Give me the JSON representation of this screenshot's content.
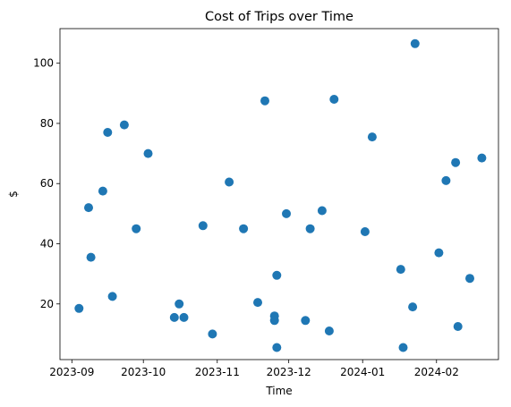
{
  "chart_data": {
    "type": "scatter",
    "title": "Cost of Trips over Time",
    "xlabel": "Time",
    "ylabel": "$",
    "xlim": [
      "2023-08-27",
      "2024-02-27"
    ],
    "ylim": [
      1.5,
      111.5
    ],
    "grid": false,
    "point_color": "#1f77b4",
    "x_ticks": [
      "2023-09",
      "2023-10",
      "2023-11",
      "2023-12",
      "2024-01",
      "2024-02"
    ],
    "y_ticks": [
      20,
      40,
      60,
      80,
      100
    ],
    "points": [
      {
        "x": "2023-09-04",
        "y": 18.5
      },
      {
        "x": "2023-09-08",
        "y": 52
      },
      {
        "x": "2023-09-09",
        "y": 35.5
      },
      {
        "x": "2023-09-14",
        "y": 57.5
      },
      {
        "x": "2023-09-16",
        "y": 77
      },
      {
        "x": "2023-09-18",
        "y": 22.5
      },
      {
        "x": "2023-09-23",
        "y": 79.5
      },
      {
        "x": "2023-09-28",
        "y": 45
      },
      {
        "x": "2023-10-03",
        "y": 70
      },
      {
        "x": "2023-10-14",
        "y": 15.5
      },
      {
        "x": "2023-10-16",
        "y": 20
      },
      {
        "x": "2023-10-18",
        "y": 15.5
      },
      {
        "x": "2023-10-26",
        "y": 46
      },
      {
        "x": "2023-10-30",
        "y": 10
      },
      {
        "x": "2023-11-06",
        "y": 60.5
      },
      {
        "x": "2023-11-12",
        "y": 45
      },
      {
        "x": "2023-11-18",
        "y": 20.5
      },
      {
        "x": "2023-11-21",
        "y": 87.5
      },
      {
        "x": "2023-11-25",
        "y": 16
      },
      {
        "x": "2023-11-25",
        "y": 14.5
      },
      {
        "x": "2023-11-26",
        "y": 5.5
      },
      {
        "x": "2023-11-26",
        "y": 29.5
      },
      {
        "x": "2023-11-30",
        "y": 50
      },
      {
        "x": "2023-12-08",
        "y": 14.5
      },
      {
        "x": "2023-12-10",
        "y": 45
      },
      {
        "x": "2023-12-15",
        "y": 51
      },
      {
        "x": "2023-12-18",
        "y": 11
      },
      {
        "x": "2023-12-20",
        "y": 88
      },
      {
        "x": "2024-01-02",
        "y": 44
      },
      {
        "x": "2024-01-05",
        "y": 75.5
      },
      {
        "x": "2024-01-17",
        "y": 31.5
      },
      {
        "x": "2024-01-18",
        "y": 5.5
      },
      {
        "x": "2024-01-22",
        "y": 19
      },
      {
        "x": "2024-01-23",
        "y": 106.5
      },
      {
        "x": "2024-02-02",
        "y": 37
      },
      {
        "x": "2024-02-05",
        "y": 61
      },
      {
        "x": "2024-02-09",
        "y": 67
      },
      {
        "x": "2024-02-10",
        "y": 12.5
      },
      {
        "x": "2024-02-15",
        "y": 28.5
      },
      {
        "x": "2024-02-20",
        "y": 68.5
      }
    ]
  }
}
